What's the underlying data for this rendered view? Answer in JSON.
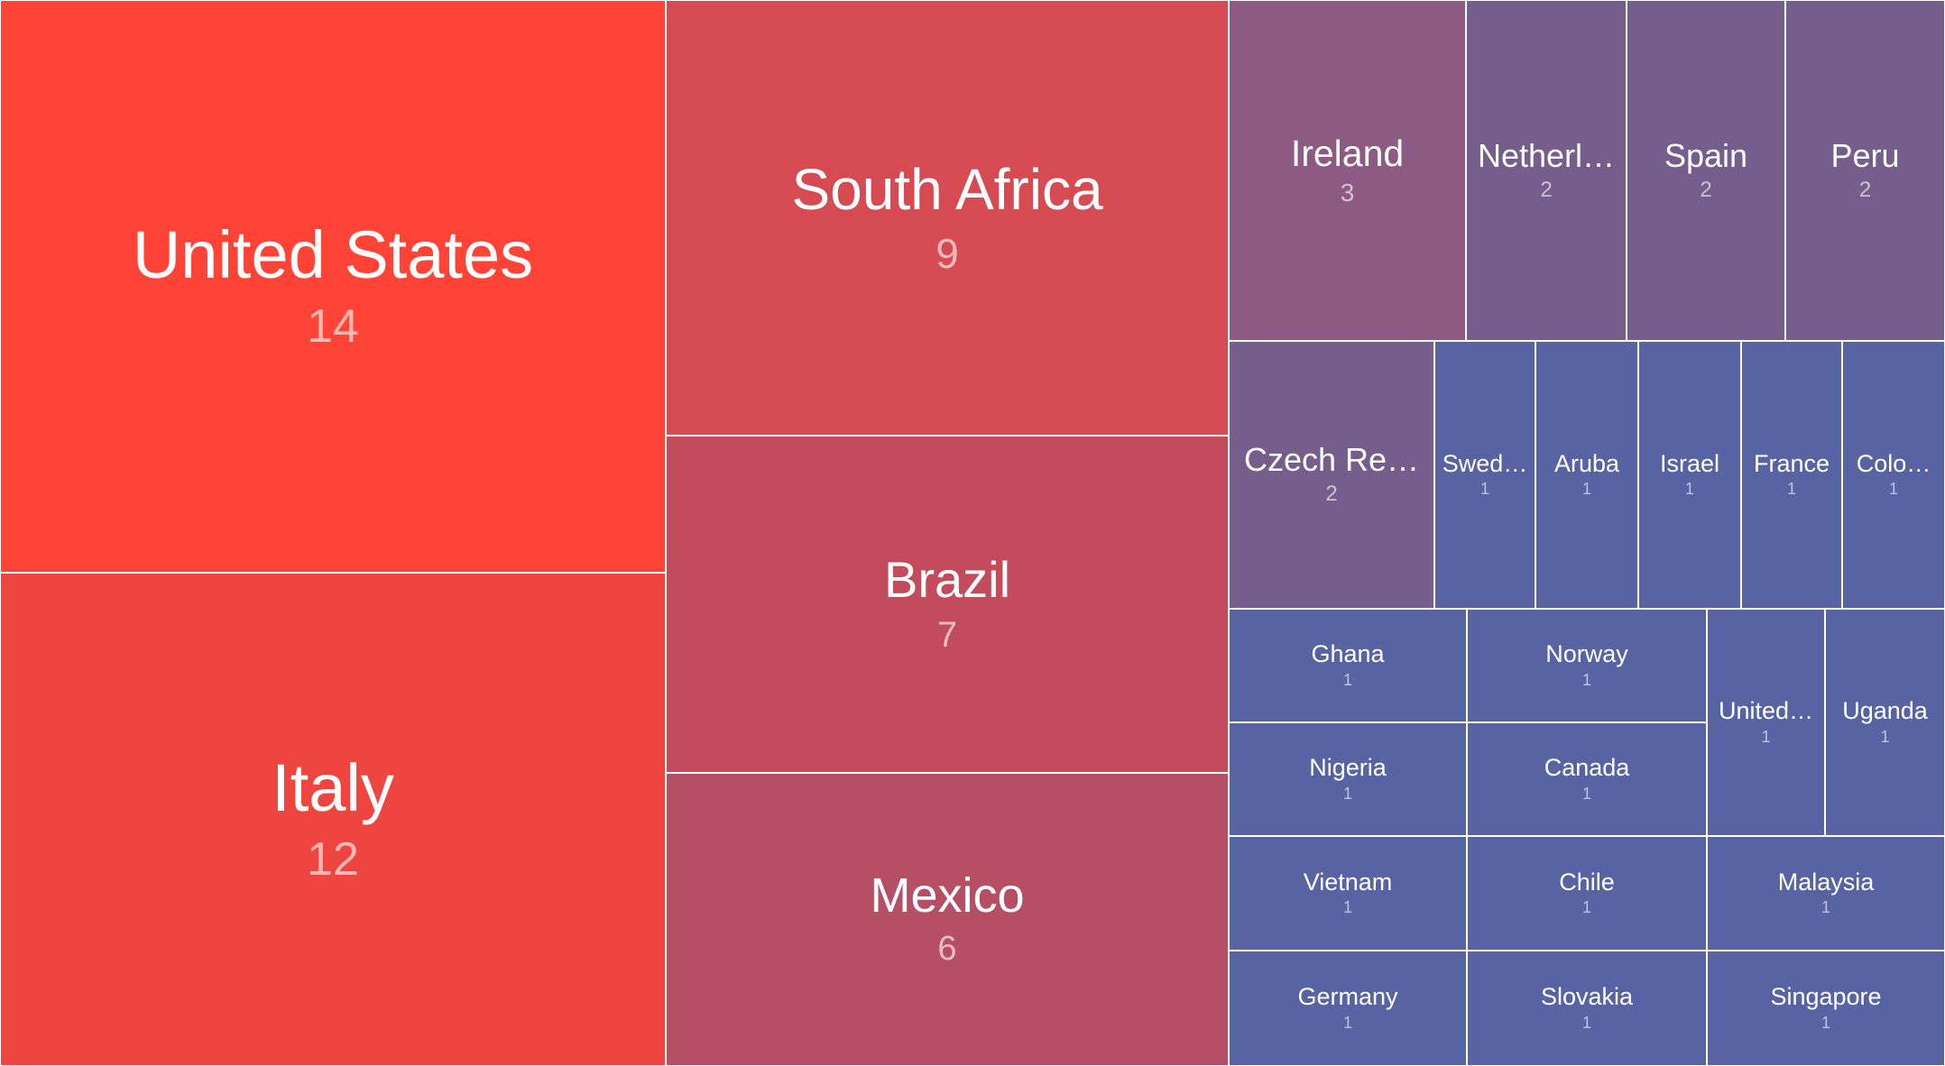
{
  "chart_data": {
    "type": "treemap",
    "palette": {
      "max_color": "#ff4336",
      "mid_color": "#8c5a82",
      "min_color": "#5763a3"
    },
    "items": [
      {
        "label": "United States",
        "value": 14,
        "color": "#ff4336"
      },
      {
        "label": "Italy",
        "value": 12,
        "color": "#ef4541"
      },
      {
        "label": "South Africa",
        "value": 9,
        "color": "#d64a51"
      },
      {
        "label": "Brazil",
        "value": 7,
        "color": "#c24c5c"
      },
      {
        "label": "Mexico",
        "value": 6,
        "color": "#b64f63"
      },
      {
        "label": "Ireland",
        "value": 3,
        "color": "#8c5a82"
      },
      {
        "label": "Netherl…",
        "value": 2,
        "color": "#765e8c"
      },
      {
        "label": "Spain",
        "value": 2,
        "color": "#765e8c"
      },
      {
        "label": "Peru",
        "value": 2,
        "color": "#765e8c"
      },
      {
        "label": "Czech Re…",
        "value": 2,
        "color": "#765e8c"
      },
      {
        "label": "Swed…",
        "value": 1,
        "color": "#5763a3"
      },
      {
        "label": "Aruba",
        "value": 1,
        "color": "#5763a3"
      },
      {
        "label": "Israel",
        "value": 1,
        "color": "#5763a3"
      },
      {
        "label": "France",
        "value": 1,
        "color": "#5763a3"
      },
      {
        "label": "Colo…",
        "value": 1,
        "color": "#5763a3"
      },
      {
        "label": "Ghana",
        "value": 1,
        "color": "#5763a3"
      },
      {
        "label": "Norway",
        "value": 1,
        "color": "#5763a3"
      },
      {
        "label": "United…",
        "value": 1,
        "color": "#5763a3"
      },
      {
        "label": "Uganda",
        "value": 1,
        "color": "#5763a3"
      },
      {
        "label": "Nigeria",
        "value": 1,
        "color": "#5763a3"
      },
      {
        "label": "Canada",
        "value": 1,
        "color": "#5763a3"
      },
      {
        "label": "Vietnam",
        "value": 1,
        "color": "#5763a3"
      },
      {
        "label": "Chile",
        "value": 1,
        "color": "#5763a3"
      },
      {
        "label": "Malaysia",
        "value": 1,
        "color": "#5763a3"
      },
      {
        "label": "Germany",
        "value": 1,
        "color": "#5763a3"
      },
      {
        "label": "Slovakia",
        "value": 1,
        "color": "#5763a3"
      },
      {
        "label": "Singapore",
        "value": 1,
        "color": "#5763a3"
      }
    ]
  }
}
